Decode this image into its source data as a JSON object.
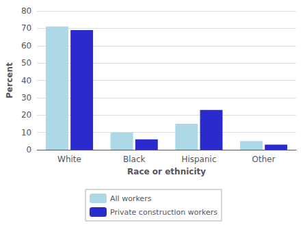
{
  "chart_data": {
    "type": "bar",
    "xlabel": "Race or ethnicity",
    "ylabel": "Percent",
    "categories": [
      "White",
      "Black",
      "Hispanic",
      "Other"
    ],
    "series": [
      {
        "name": "All workers",
        "color": "#add8e6",
        "values": [
          71,
          10,
          15,
          5
        ]
      },
      {
        "name": "Private construction workers",
        "color": "#2a2acd",
        "values": [
          69,
          6,
          23,
          3
        ]
      }
    ],
    "ylim": [
      0,
      80
    ],
    "yticks": [
      0,
      10,
      20,
      30,
      40,
      50,
      60,
      70,
      80
    ],
    "grid": true,
    "legend": "bottom"
  }
}
